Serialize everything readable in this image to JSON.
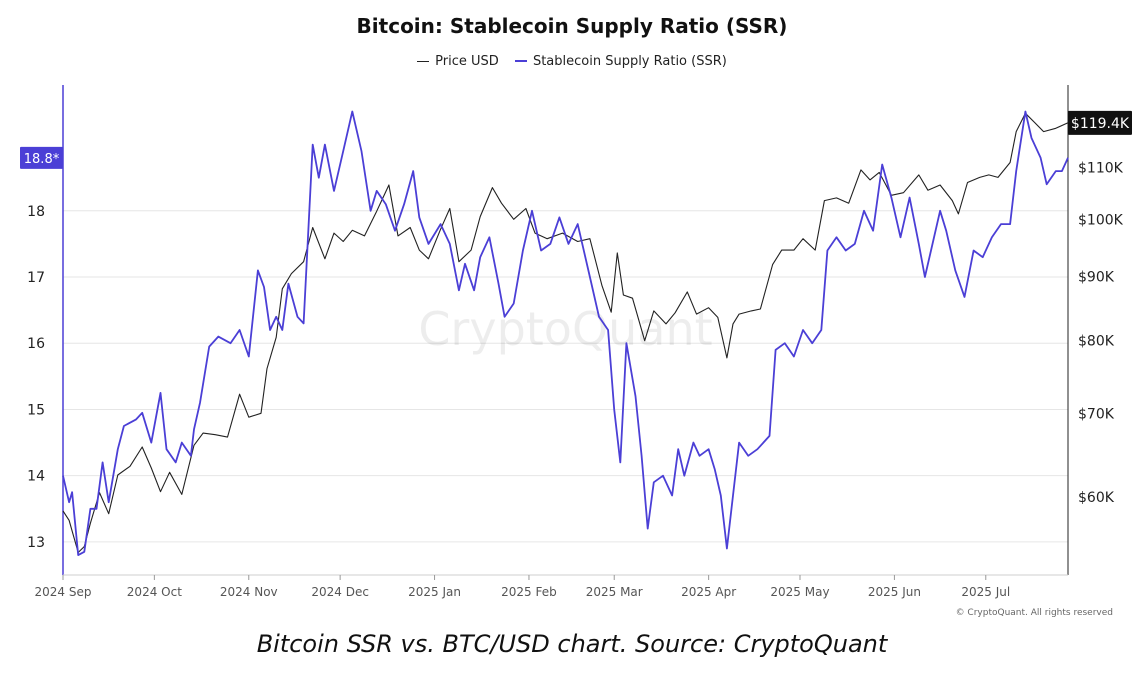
{
  "chart_data": {
    "type": "line",
    "title": "Bitcoin: Stablecoin Supply Ratio (SSR)",
    "x_ticks": [
      "2024 Sep",
      "2024 Oct",
      "2024 Nov",
      "2024 Dec",
      "2025 Jan",
      "2025 Feb",
      "2025 Mar",
      "2025 Apr",
      "2025 May",
      "2025 Jun",
      "2025 Jul"
    ],
    "x_range": [
      "2024-09-01",
      "2025-07-28"
    ],
    "y_left": {
      "ticks": [
        13,
        14,
        15,
        16,
        17,
        18
      ],
      "range": [
        12.5,
        19.9
      ],
      "current_label": "18.8*",
      "current_value": 18.8
    },
    "y_right": {
      "scale": "log",
      "ticks": [
        60000,
        70000,
        80000,
        90000,
        100000,
        110000
      ],
      "tick_labels": [
        "$60K",
        "$70K",
        "$80K",
        "$90K",
        "$100K",
        "$110K"
      ],
      "range": [
        52000,
        128000
      ],
      "current_label": "$119.4K",
      "current_value": 119400
    },
    "grid": "horizontal",
    "legend_position": "top-center",
    "series": [
      {
        "name": "Price USD",
        "axis": "right",
        "color": "#222222",
        "points": [
          [
            "2024-09-01",
            58500
          ],
          [
            "2024-09-03",
            57500
          ],
          [
            "2024-09-06",
            54200
          ],
          [
            "2024-09-08",
            54800
          ],
          [
            "2024-09-10",
            57200
          ],
          [
            "2024-09-13",
            60500
          ],
          [
            "2024-09-16",
            58200
          ],
          [
            "2024-09-19",
            62500
          ],
          [
            "2024-09-23",
            63500
          ],
          [
            "2024-09-27",
            65800
          ],
          [
            "2024-09-30",
            63300
          ],
          [
            "2024-10-03",
            60600
          ],
          [
            "2024-10-06",
            62800
          ],
          [
            "2024-10-10",
            60300
          ],
          [
            "2024-10-14",
            66000
          ],
          [
            "2024-10-17",
            67500
          ],
          [
            "2024-10-21",
            67300
          ],
          [
            "2024-10-25",
            67000
          ],
          [
            "2024-10-29",
            72500
          ],
          [
            "2024-11-01",
            69500
          ],
          [
            "2024-11-05",
            70000
          ],
          [
            "2024-11-07",
            76000
          ],
          [
            "2024-11-10",
            80500
          ],
          [
            "2024-11-12",
            88000
          ],
          [
            "2024-11-15",
            90500
          ],
          [
            "2024-11-19",
            92500
          ],
          [
            "2024-11-22",
            98500
          ],
          [
            "2024-11-26",
            93000
          ],
          [
            "2024-11-29",
            97500
          ],
          [
            "2024-12-02",
            96000
          ],
          [
            "2024-12-05",
            98000
          ],
          [
            "2024-12-09",
            97000
          ],
          [
            "2024-12-13",
            101500
          ],
          [
            "2024-12-17",
            106500
          ],
          [
            "2024-12-20",
            97000
          ],
          [
            "2024-12-24",
            98500
          ],
          [
            "2024-12-27",
            94500
          ],
          [
            "2024-12-30",
            93000
          ],
          [
            "2025-01-03",
            98200
          ],
          [
            "2025-01-06",
            102000
          ],
          [
            "2025-01-09",
            92500
          ],
          [
            "2025-01-13",
            94500
          ],
          [
            "2025-01-16",
            100500
          ],
          [
            "2025-01-20",
            106000
          ],
          [
            "2025-01-23",
            103000
          ],
          [
            "2025-01-27",
            100000
          ],
          [
            "2025-01-31",
            102000
          ],
          [
            "2025-02-03",
            97500
          ],
          [
            "2025-02-07",
            96500
          ],
          [
            "2025-02-12",
            97500
          ],
          [
            "2025-02-17",
            96000
          ],
          [
            "2025-02-21",
            96500
          ],
          [
            "2025-02-25",
            88500
          ],
          [
            "2025-02-28",
            84300
          ],
          [
            "2025-03-02",
            94000
          ],
          [
            "2025-03-04",
            87000
          ],
          [
            "2025-03-07",
            86500
          ],
          [
            "2025-03-11",
            80000
          ],
          [
            "2025-03-14",
            84500
          ],
          [
            "2025-03-18",
            82500
          ],
          [
            "2025-03-21",
            84200
          ],
          [
            "2025-03-25",
            87500
          ],
          [
            "2025-03-28",
            84000
          ],
          [
            "2025-04-01",
            85000
          ],
          [
            "2025-04-04",
            83500
          ],
          [
            "2025-04-07",
            77500
          ],
          [
            "2025-04-09",
            82500
          ],
          [
            "2025-04-11",
            84000
          ],
          [
            "2025-04-15",
            84500
          ],
          [
            "2025-04-18",
            84800
          ],
          [
            "2025-04-22",
            92000
          ],
          [
            "2025-04-25",
            94500
          ],
          [
            "2025-04-29",
            94500
          ],
          [
            "2025-05-02",
            96500
          ],
          [
            "2025-05-06",
            94500
          ],
          [
            "2025-05-09",
            103500
          ],
          [
            "2025-05-13",
            104000
          ],
          [
            "2025-05-17",
            103000
          ],
          [
            "2025-05-21",
            109500
          ],
          [
            "2025-05-24",
            107500
          ],
          [
            "2025-05-27",
            109000
          ],
          [
            "2025-05-31",
            104500
          ],
          [
            "2025-06-04",
            105000
          ],
          [
            "2025-06-09",
            108500
          ],
          [
            "2025-06-12",
            105500
          ],
          [
            "2025-06-16",
            106500
          ],
          [
            "2025-06-20",
            103500
          ],
          [
            "2025-06-22",
            101000
          ],
          [
            "2025-06-25",
            107000
          ],
          [
            "2025-06-29",
            108000
          ],
          [
            "2025-07-02",
            108500
          ],
          [
            "2025-07-05",
            108000
          ],
          [
            "2025-07-09",
            111000
          ],
          [
            "2025-07-11",
            117500
          ],
          [
            "2025-07-14",
            121500
          ],
          [
            "2025-07-17",
            119500
          ],
          [
            "2025-07-20",
            117500
          ],
          [
            "2025-07-24",
            118200
          ],
          [
            "2025-07-28",
            119400
          ]
        ]
      },
      {
        "name": "Stablecoin Supply Ratio (SSR)",
        "axis": "left",
        "color": "#4b3fd6",
        "points": [
          [
            "2024-09-01",
            14.0
          ],
          [
            "2024-09-03",
            13.6
          ],
          [
            "2024-09-04",
            13.75
          ],
          [
            "2024-09-06",
            12.8
          ],
          [
            "2024-09-08",
            12.85
          ],
          [
            "2024-09-10",
            13.5
          ],
          [
            "2024-09-12",
            13.5
          ],
          [
            "2024-09-14",
            14.2
          ],
          [
            "2024-09-16",
            13.6
          ],
          [
            "2024-09-19",
            14.4
          ],
          [
            "2024-09-21",
            14.75
          ],
          [
            "2024-09-25",
            14.85
          ],
          [
            "2024-09-27",
            14.95
          ],
          [
            "2024-09-30",
            14.5
          ],
          [
            "2024-10-03",
            15.25
          ],
          [
            "2024-10-05",
            14.4
          ],
          [
            "2024-10-08",
            14.2
          ],
          [
            "2024-10-10",
            14.5
          ],
          [
            "2024-10-13",
            14.3
          ],
          [
            "2024-10-14",
            14.7
          ],
          [
            "2024-10-16",
            15.1
          ],
          [
            "2024-10-19",
            15.95
          ],
          [
            "2024-10-22",
            16.1
          ],
          [
            "2024-10-26",
            16.0
          ],
          [
            "2024-10-29",
            16.2
          ],
          [
            "2024-11-01",
            15.8
          ],
          [
            "2024-11-04",
            17.1
          ],
          [
            "2024-11-06",
            16.85
          ],
          [
            "2024-11-08",
            16.2
          ],
          [
            "2024-11-10",
            16.4
          ],
          [
            "2024-11-12",
            16.2
          ],
          [
            "2024-11-14",
            16.9
          ],
          [
            "2024-11-17",
            16.4
          ],
          [
            "2024-11-19",
            16.3
          ],
          [
            "2024-11-22",
            19.0
          ],
          [
            "2024-11-24",
            18.5
          ],
          [
            "2024-11-26",
            19.0
          ],
          [
            "2024-11-29",
            18.3
          ],
          [
            "2024-12-02",
            18.9
          ],
          [
            "2024-12-05",
            19.5
          ],
          [
            "2024-12-08",
            18.9
          ],
          [
            "2024-12-11",
            18.0
          ],
          [
            "2024-12-13",
            18.3
          ],
          [
            "2024-12-16",
            18.1
          ],
          [
            "2024-12-19",
            17.7
          ],
          [
            "2024-12-22",
            18.1
          ],
          [
            "2024-12-25",
            18.6
          ],
          [
            "2024-12-27",
            17.9
          ],
          [
            "2024-12-30",
            17.5
          ],
          [
            "2025-01-03",
            17.8
          ],
          [
            "2025-01-06",
            17.5
          ],
          [
            "2025-01-09",
            16.8
          ],
          [
            "2025-01-11",
            17.2
          ],
          [
            "2025-01-14",
            16.8
          ],
          [
            "2025-01-16",
            17.3
          ],
          [
            "2025-01-19",
            17.6
          ],
          [
            "2025-01-22",
            16.9
          ],
          [
            "2025-01-24",
            16.4
          ],
          [
            "2025-01-27",
            16.6
          ],
          [
            "2025-01-30",
            17.4
          ],
          [
            "2025-02-02",
            18.0
          ],
          [
            "2025-02-05",
            17.4
          ],
          [
            "2025-02-08",
            17.5
          ],
          [
            "2025-02-11",
            17.9
          ],
          [
            "2025-02-14",
            17.5
          ],
          [
            "2025-02-17",
            17.8
          ],
          [
            "2025-02-21",
            17.0
          ],
          [
            "2025-02-24",
            16.4
          ],
          [
            "2025-02-27",
            16.2
          ],
          [
            "2025-03-01",
            15.0
          ],
          [
            "2025-03-03",
            14.2
          ],
          [
            "2025-03-05",
            16.0
          ],
          [
            "2025-03-08",
            15.2
          ],
          [
            "2025-03-10",
            14.3
          ],
          [
            "2025-03-12",
            13.2
          ],
          [
            "2025-03-14",
            13.9
          ],
          [
            "2025-03-17",
            14.0
          ],
          [
            "2025-03-20",
            13.7
          ],
          [
            "2025-03-22",
            14.4
          ],
          [
            "2025-03-24",
            14.0
          ],
          [
            "2025-03-27",
            14.5
          ],
          [
            "2025-03-29",
            14.3
          ],
          [
            "2025-04-01",
            14.4
          ],
          [
            "2025-04-03",
            14.1
          ],
          [
            "2025-04-05",
            13.7
          ],
          [
            "2025-04-07",
            12.9
          ],
          [
            "2025-04-09",
            13.7
          ],
          [
            "2025-04-11",
            14.5
          ],
          [
            "2025-04-14",
            14.3
          ],
          [
            "2025-04-17",
            14.4
          ],
          [
            "2025-04-21",
            14.6
          ],
          [
            "2025-04-23",
            15.9
          ],
          [
            "2025-04-26",
            16.0
          ],
          [
            "2025-04-29",
            15.8
          ],
          [
            "2025-05-02",
            16.2
          ],
          [
            "2025-05-05",
            16.0
          ],
          [
            "2025-05-08",
            16.2
          ],
          [
            "2025-05-10",
            17.4
          ],
          [
            "2025-05-13",
            17.6
          ],
          [
            "2025-05-16",
            17.4
          ],
          [
            "2025-05-19",
            17.5
          ],
          [
            "2025-05-22",
            18.0
          ],
          [
            "2025-05-25",
            17.7
          ],
          [
            "2025-05-28",
            18.7
          ],
          [
            "2025-05-31",
            18.2
          ],
          [
            "2025-06-03",
            17.6
          ],
          [
            "2025-06-06",
            18.2
          ],
          [
            "2025-06-09",
            17.5
          ],
          [
            "2025-06-11",
            17.0
          ],
          [
            "2025-06-13",
            17.4
          ],
          [
            "2025-06-16",
            18.0
          ],
          [
            "2025-06-18",
            17.7
          ],
          [
            "2025-06-21",
            17.1
          ],
          [
            "2025-06-24",
            16.7
          ],
          [
            "2025-06-27",
            17.4
          ],
          [
            "2025-06-30",
            17.3
          ],
          [
            "2025-07-03",
            17.6
          ],
          [
            "2025-07-06",
            17.8
          ],
          [
            "2025-07-09",
            17.8
          ],
          [
            "2025-07-11",
            18.6
          ],
          [
            "2025-07-14",
            19.5
          ],
          [
            "2025-07-16",
            19.1
          ],
          [
            "2025-07-19",
            18.8
          ],
          [
            "2025-07-21",
            18.4
          ],
          [
            "2025-07-24",
            18.6
          ],
          [
            "2025-07-26",
            18.6
          ],
          [
            "2025-07-28",
            18.8
          ]
        ]
      }
    ]
  },
  "watermark": "CryptoQuant",
  "copyright": "© CryptoQuant. All rights reserved",
  "caption": "Bitcoin SSR vs. BTC/USD chart. Source: CryptoQuant"
}
